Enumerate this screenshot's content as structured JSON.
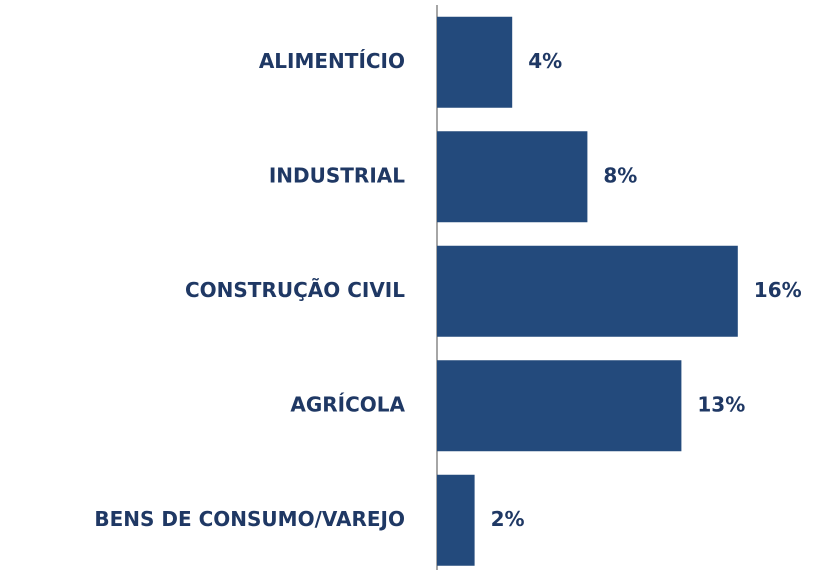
{
  "chart_data": {
    "type": "bar",
    "orientation": "horizontal",
    "categories": [
      "ALIMENTÍCIO",
      "INDUSTRIAL",
      "CONSTRUÇÃO CIVIL",
      "AGRÍCOLA",
      "BENS DE CONSUMO/VAREJO"
    ],
    "values": [
      4,
      8,
      16,
      13,
      2
    ],
    "value_labels": [
      "4%",
      "8%",
      "16%",
      "13%",
      "2%"
    ],
    "color": "#234a7c"
  }
}
